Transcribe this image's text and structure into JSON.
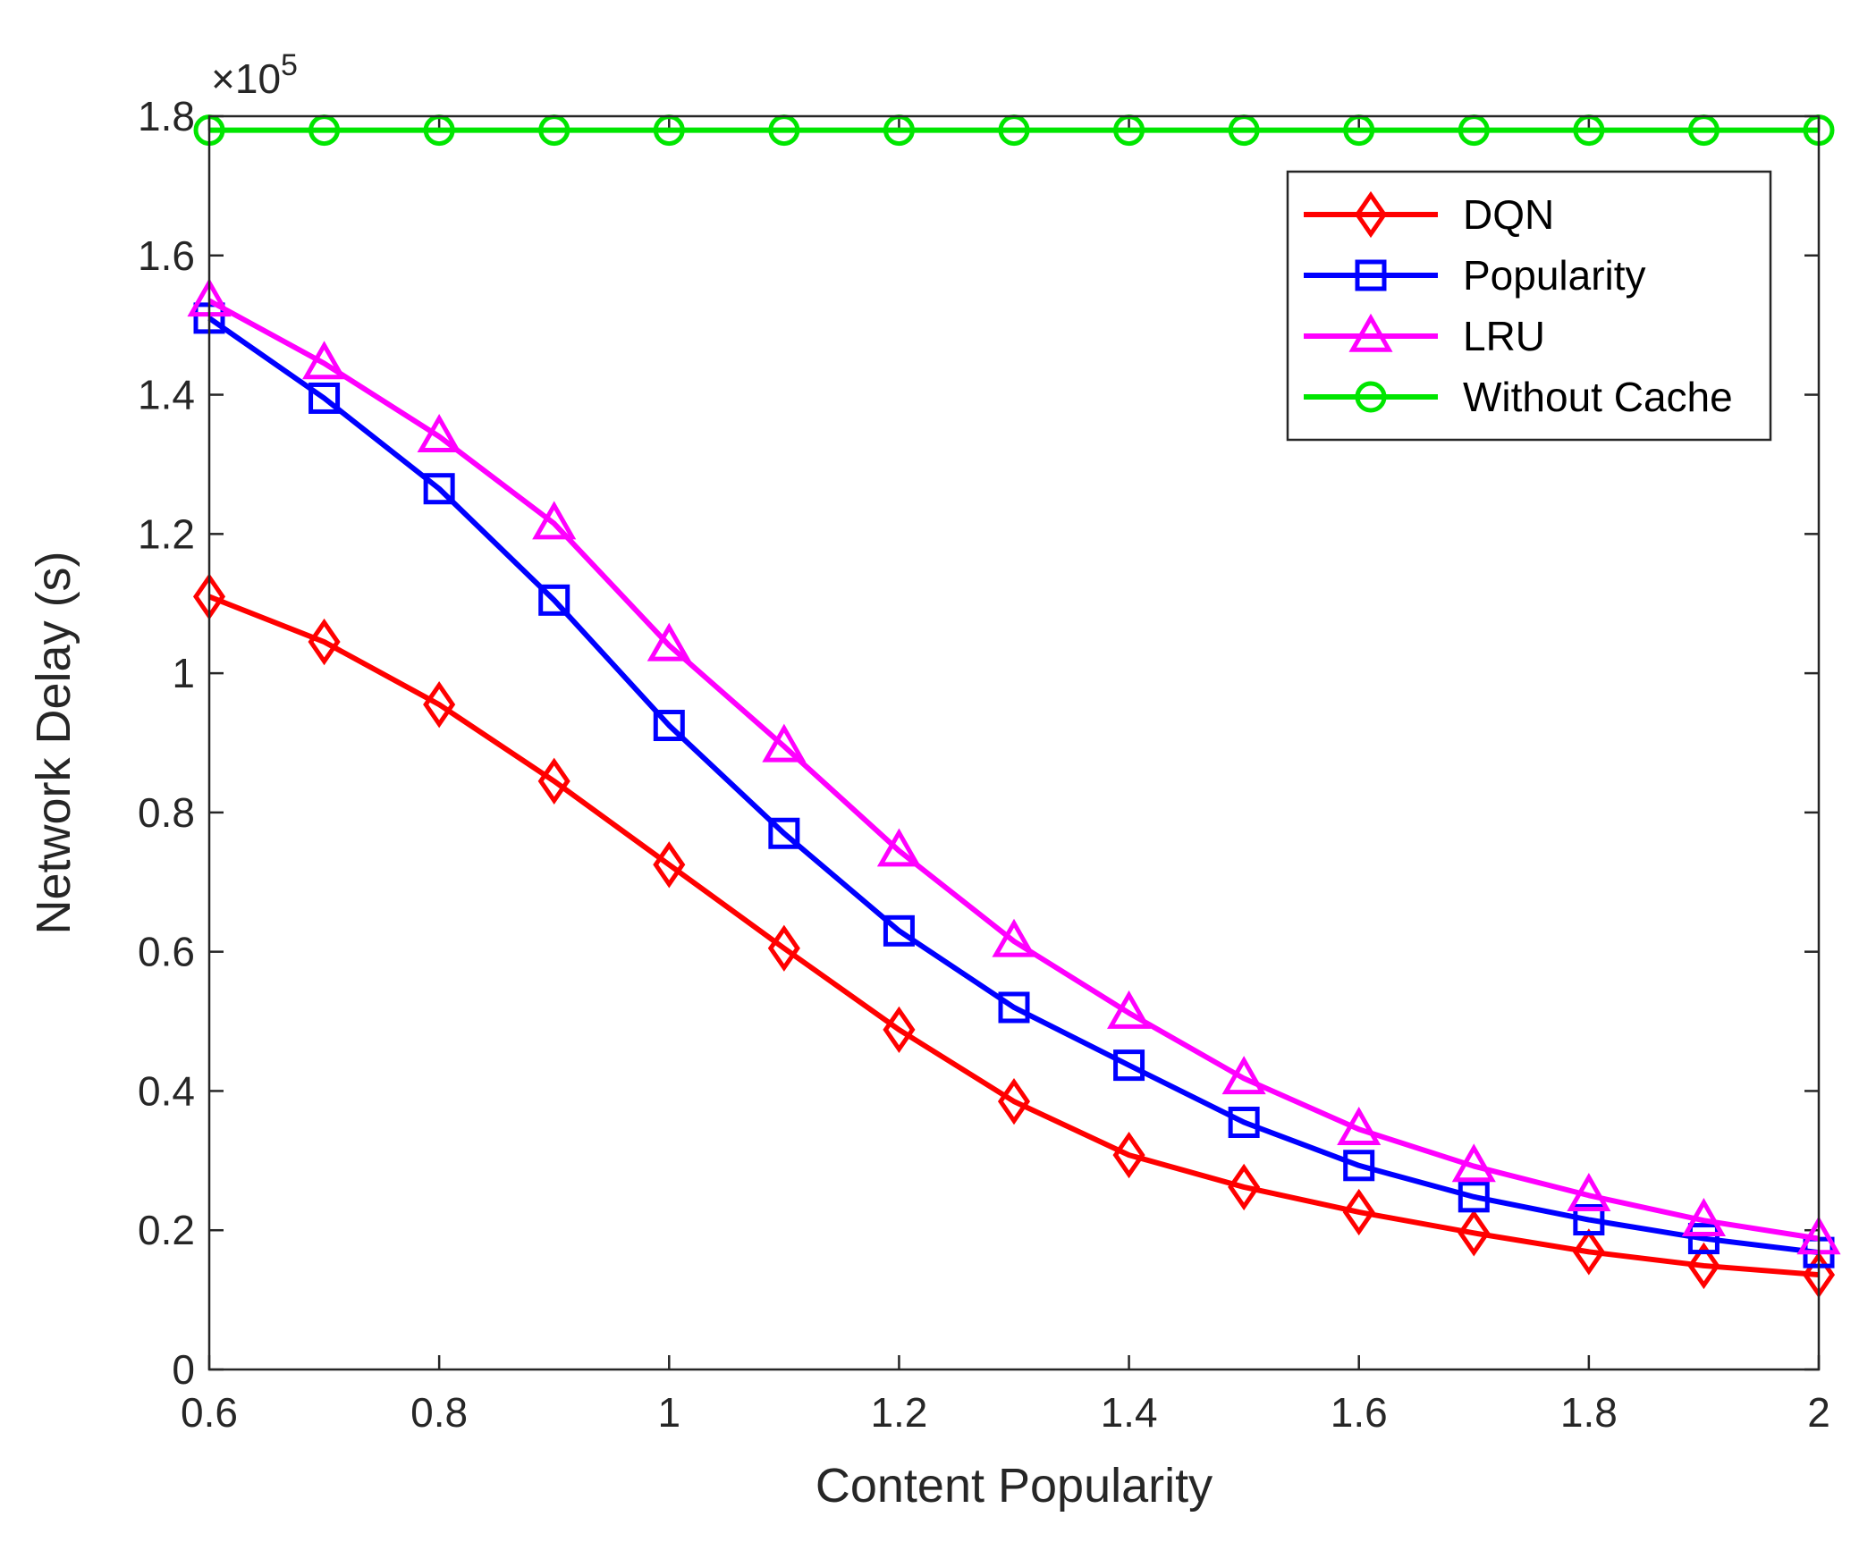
{
  "chart_data": {
    "type": "line",
    "title": "",
    "xlabel": "Content Popularity",
    "ylabel": "Network Delay (s)",
    "x": [
      0.6,
      0.7,
      0.8,
      0.9,
      1.0,
      1.1,
      1.2,
      1.3,
      1.4,
      1.5,
      1.6,
      1.7,
      1.8,
      1.9,
      2.0
    ],
    "xlim": [
      0.6,
      2.0
    ],
    "ylim": [
      0,
      1.8
    ],
    "y_exponent": {
      "times": "×10",
      "power": "5"
    },
    "xticks": [
      0.6,
      0.8,
      1.0,
      1.2,
      1.4,
      1.6,
      1.8,
      2.0
    ],
    "xtick_labels": [
      "0.6",
      "0.8",
      "1",
      "1.2",
      "1.4",
      "1.6",
      "1.8",
      "2"
    ],
    "yticks": [
      0,
      0.2,
      0.4,
      0.6,
      0.8,
      1.0,
      1.2,
      1.4,
      1.6,
      1.8
    ],
    "ytick_labels": [
      "0",
      "0.2",
      "0.4",
      "0.6",
      "0.8",
      "1",
      "1.2",
      "1.4",
      "1.6",
      "1.8"
    ],
    "grid": false,
    "legend_position": "top-right",
    "series": [
      {
        "name": "DQN",
        "color": "#ff0000",
        "marker": "diamond",
        "values": [
          1.11,
          1.045,
          0.955,
          0.845,
          0.725,
          0.605,
          0.488,
          0.385,
          0.308,
          0.262,
          0.226,
          0.196,
          0.169,
          0.149,
          0.136
        ]
      },
      {
        "name": "Popularity",
        "color": "#0000ff",
        "marker": "square",
        "values": [
          1.51,
          1.395,
          1.265,
          1.105,
          0.925,
          0.77,
          0.63,
          0.52,
          0.437,
          0.355,
          0.293,
          0.248,
          0.215,
          0.188,
          0.168
        ]
      },
      {
        "name": "LRU",
        "color": "#ff00ff",
        "marker": "triangle",
        "values": [
          1.535,
          1.445,
          1.34,
          1.215,
          1.04,
          0.895,
          0.745,
          0.615,
          0.512,
          0.418,
          0.345,
          0.292,
          0.25,
          0.214,
          0.188
        ]
      },
      {
        "name": "Without Cache",
        "color": "#00e600",
        "marker": "circle",
        "values": [
          1.78,
          1.78,
          1.78,
          1.78,
          1.78,
          1.78,
          1.78,
          1.78,
          1.78,
          1.78,
          1.78,
          1.78,
          1.78,
          1.78,
          1.78
        ]
      }
    ]
  }
}
